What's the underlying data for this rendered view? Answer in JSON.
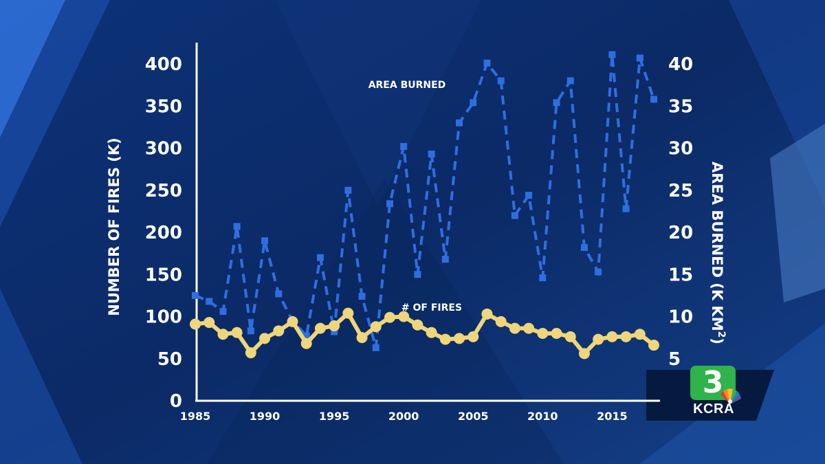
{
  "chart_data": {
    "type": "line",
    "x": [
      1985,
      1986,
      1987,
      1988,
      1989,
      1990,
      1991,
      1992,
      1993,
      1994,
      1995,
      1996,
      1997,
      1998,
      1999,
      2000,
      2001,
      2002,
      2003,
      2004,
      2005,
      2006,
      2007,
      2008,
      2009,
      2010,
      2011,
      2012,
      2013,
      2014,
      2015,
      2016,
      2017,
      2018
    ],
    "xticks": [
      "1985",
      "1990",
      "1995",
      "2000",
      "2005",
      "2010",
      "2015"
    ],
    "xlim": [
      1985,
      2018
    ],
    "left_axis": {
      "title": "NUMBER OF FIRES (K)",
      "ticks": [
        "0",
        "50",
        "100",
        "150",
        "200",
        "250",
        "300",
        "350",
        "400"
      ],
      "ylim": [
        0,
        400
      ]
    },
    "right_axis": {
      "title": "AREA BURNED (K KM",
      "title_superscript": "2",
      "title_close": ")",
      "ticks": [
        "5",
        "10",
        "15",
        "20",
        "25",
        "30",
        "35",
        "40"
      ],
      "ylim": [
        0,
        40
      ]
    },
    "series": [
      {
        "name": "AREA BURNED",
        "axis": "right",
        "style": "dashed-square",
        "color": "#2f6ee0",
        "values": [
          12.5,
          11.8,
          10.6,
          20.7,
          8.3,
          19.0,
          12.7,
          9.5,
          7.7,
          17.0,
          8.2,
          25.0,
          12.4,
          6.3,
          23.4,
          30.2,
          15.0,
          29.3,
          16.8,
          33.0,
          35.4,
          40.1,
          38.0,
          22.0,
          24.4,
          14.6,
          35.4,
          38.0,
          18.2,
          15.3,
          41.1,
          22.8,
          40.7,
          35.8
        ]
      },
      {
        "name": "# OF FIRES",
        "axis": "left",
        "style": "solid-circle",
        "color": "#efd67b",
        "values": [
          91,
          93,
          79,
          81,
          57,
          74,
          83,
          94,
          68,
          86,
          89,
          104,
          75,
          88,
          99,
          100,
          90,
          81,
          73,
          74,
          76,
          103,
          94,
          86,
          86,
          80,
          80,
          76,
          56,
          73,
          76,
          76,
          79,
          66
        ]
      }
    ],
    "grid": false
  },
  "logo": {
    "number": "3",
    "text": "KCRA"
  }
}
